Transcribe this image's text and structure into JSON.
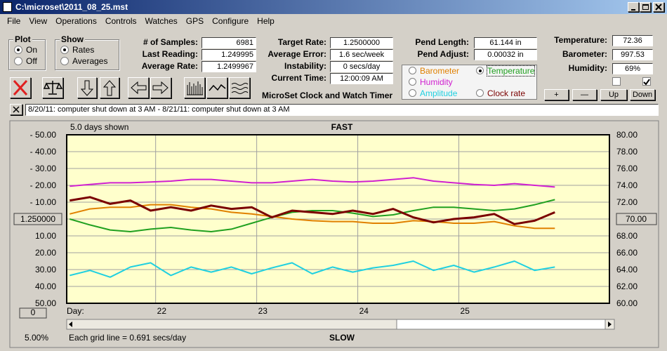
{
  "window": {
    "title": "C:\\microset\\2011_08_25.mst",
    "menu": [
      "File",
      "View",
      "Operations",
      "Controls",
      "Watches",
      "GPS",
      "Configure",
      "Help"
    ]
  },
  "plot_group": {
    "title": "Plot",
    "options": [
      "On",
      "Off"
    ],
    "selected": 0
  },
  "show_group": {
    "title": "Show",
    "options": [
      "Rates",
      "Averages"
    ],
    "selected": 0
  },
  "fields_1": [
    {
      "label": "# of Samples:",
      "value": "6981"
    },
    {
      "label": "Last Reading:",
      "value": "1.249995"
    },
    {
      "label": "Average Rate:",
      "value": "1.2499967"
    }
  ],
  "fields_2": [
    {
      "label": "Target Rate:",
      "value": "1.2500000"
    },
    {
      "label": "Average Error:",
      "value": "1.6 sec/week"
    },
    {
      "label": "Instability:",
      "value": "0 secs/day"
    },
    {
      "label": "Current Time:",
      "value": "12:00:09 AM"
    }
  ],
  "fields_3": [
    {
      "label": "Pend Length:",
      "value": "61.144 in"
    },
    {
      "label": "Pend Adjust:",
      "value": "0.00032 in"
    }
  ],
  "fields_4": [
    {
      "label": "Temperature:",
      "value": "72.36"
    },
    {
      "label": "Barometer:",
      "value": "997.53"
    },
    {
      "label": "Humidity:",
      "value": "69%"
    }
  ],
  "banner": "MicroSet Clock and Watch Timer",
  "series_selected": 1,
  "checkboxes": [
    false,
    true
  ],
  "buttons": [
    "+",
    "—",
    "Up",
    "Down"
  ],
  "notes": "8/20/11: computer shut down at 3 AM  -  8/21/11: computer shut down at 3 AM",
  "chart_data": {
    "type": "line",
    "info_left": "5.0 days shown",
    "top_label": "FAST",
    "bottom_label": "SLOW",
    "grid_note": "Each grid line = 0.691 secs/day",
    "zoom": "5.00%",
    "offset_button": "0",
    "x_label": "Day:",
    "x": [
      21.15,
      21.35,
      21.55,
      21.75,
      21.95,
      22.15,
      22.35,
      22.55,
      22.75,
      22.95,
      23.15,
      23.35,
      23.55,
      23.75,
      23.95,
      24.15,
      24.35,
      24.55,
      24.75,
      24.95,
      25.15,
      25.35,
      25.55,
      25.75,
      25.95
    ],
    "xlim": [
      21.12,
      26.49
    ],
    "xticks": [
      22,
      23,
      24,
      25
    ],
    "ylim": [
      -50,
      50
    ],
    "yticks": [
      {
        "value": 50,
        "label": "- 50.00"
      },
      {
        "value": 40,
        "label": "- 40.00"
      },
      {
        "value": 30,
        "label": "- 30.00"
      },
      {
        "value": 20,
        "label": "- 20.00"
      },
      {
        "value": 10,
        "label": "- 10.00"
      },
      {
        "value": 0,
        "label": "1.250000"
      },
      {
        "value": -10,
        "label": "10.00"
      },
      {
        "value": -20,
        "label": "20.00"
      },
      {
        "value": -30,
        "label": "30.00"
      },
      {
        "value": -40,
        "label": "40.00"
      },
      {
        "value": -50,
        "label": "50.00"
      }
    ],
    "y2lim": [
      60,
      80
    ],
    "y2ticks": [
      {
        "value": 80,
        "label": "80.00"
      },
      {
        "value": 78,
        "label": "78.00"
      },
      {
        "value": 76,
        "label": "76.00"
      },
      {
        "value": 74,
        "label": "74.00"
      },
      {
        "value": 72,
        "label": "72.00"
      },
      {
        "value": 70,
        "label": "70.00"
      },
      {
        "value": 68,
        "label": "68.00"
      },
      {
        "value": 66,
        "label": "66.00"
      },
      {
        "value": 64,
        "label": "64.00"
      },
      {
        "value": 62,
        "label": "62.00"
      },
      {
        "value": 60,
        "label": "60.00"
      }
    ],
    "grid": true,
    "series": [
      {
        "name": "Barometer",
        "color": "#e08000",
        "axis": "y2",
        "values": [
          70.6,
          71.2,
          71.4,
          71.4,
          71.7,
          71.7,
          71.4,
          71.2,
          70.8,
          70.6,
          70.3,
          70.0,
          69.8,
          69.7,
          69.7,
          69.5,
          69.5,
          69.8,
          69.7,
          69.5,
          69.5,
          69.7,
          69.2,
          68.9,
          68.9
        ]
      },
      {
        "name": "Temperature",
        "color": "#20a020",
        "axis": "y2",
        "values": [
          70.0,
          69.3,
          68.7,
          68.5,
          68.8,
          69.0,
          68.7,
          68.5,
          68.8,
          69.5,
          70.2,
          70.8,
          71.0,
          71.0,
          70.7,
          70.3,
          70.5,
          71.0,
          71.4,
          71.4,
          71.2,
          71.0,
          71.2,
          71.7,
          72.3
        ]
      },
      {
        "name": "Humidity",
        "color": "#d020d0",
        "axis": "y2",
        "values": [
          73.9,
          74.1,
          74.3,
          74.3,
          74.4,
          74.5,
          74.7,
          74.7,
          74.5,
          74.3,
          74.3,
          74.5,
          74.7,
          74.5,
          74.4,
          74.5,
          74.7,
          74.9,
          74.5,
          74.3,
          74.1,
          74.0,
          74.2,
          74.0,
          73.8
        ]
      },
      {
        "name": "Amplitude",
        "color": "#20d0e0",
        "axis": "y2",
        "values": [
          63.3,
          63.9,
          63.1,
          64.3,
          64.8,
          63.3,
          64.3,
          63.7,
          64.3,
          63.5,
          64.2,
          64.8,
          63.5,
          64.3,
          63.7,
          64.2,
          64.5,
          65.0,
          63.9,
          64.5,
          63.7,
          64.3,
          65.0,
          63.9,
          64.3
        ]
      },
      {
        "name": "Clock rate",
        "color": "#7a0000",
        "values": [
          11,
          13,
          9,
          11,
          5,
          7,
          5,
          8,
          6,
          7,
          1,
          5,
          4,
          3,
          5,
          3,
          6,
          1,
          -2,
          0,
          1,
          3,
          -3,
          -1,
          4
        ]
      }
    ]
  }
}
